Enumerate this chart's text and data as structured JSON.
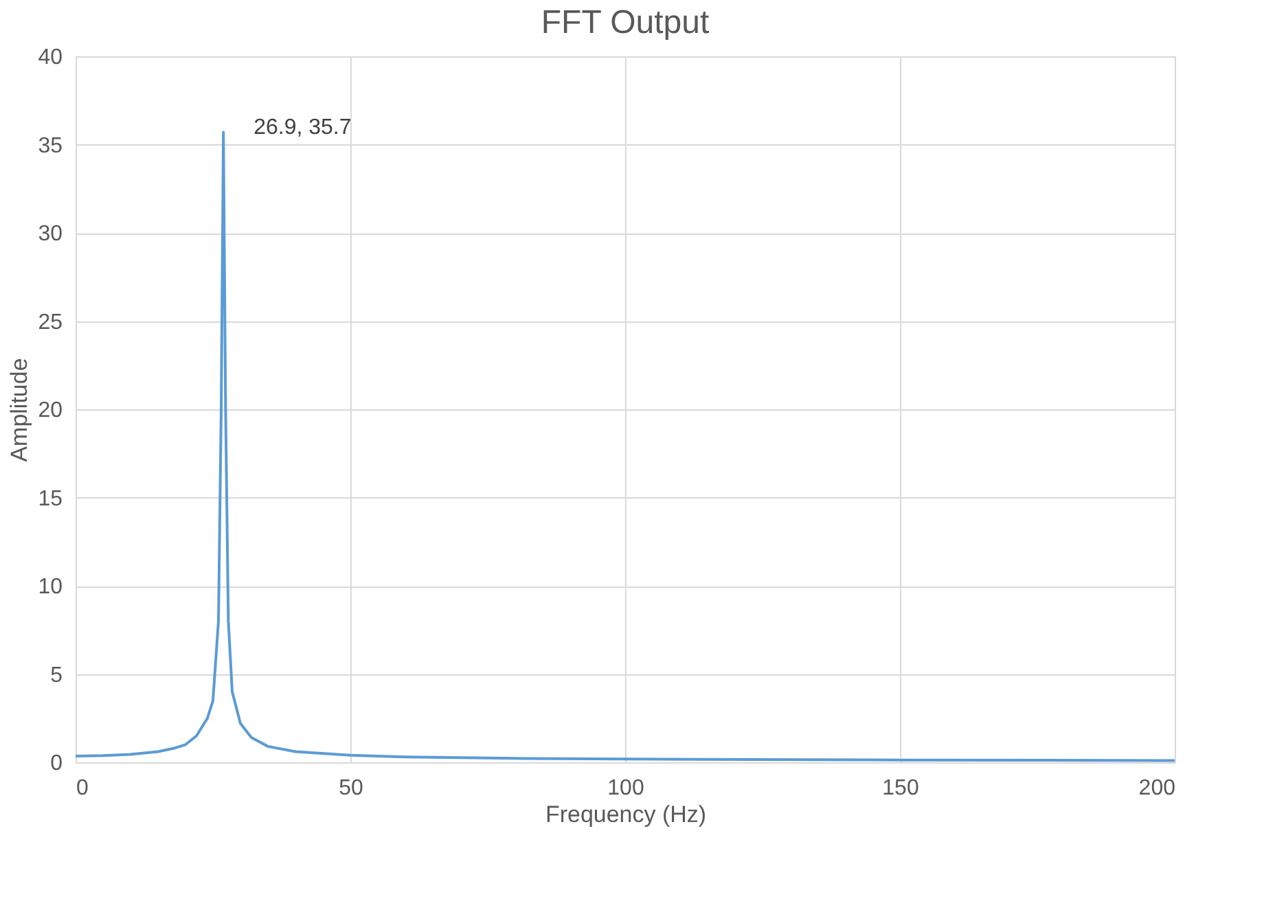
{
  "chart_data": {
    "type": "line",
    "title": "FFT Output",
    "xlabel": "Frequency (Hz)",
    "ylabel": "Amplitude",
    "xlim": [
      0,
      200
    ],
    "xticks": [
      0,
      50,
      100,
      150,
      200
    ],
    "ylim": [
      0,
      40
    ],
    "yticks": [
      0,
      5,
      10,
      15,
      20,
      25,
      30,
      35,
      40
    ],
    "grid": true,
    "marker": "none",
    "line_style": "solid",
    "series": [
      {
        "color": "#5b9bd5",
        "x": [
          0,
          5,
          10,
          15,
          18,
          20,
          22,
          24,
          25,
          26,
          26.5,
          26.9,
          27.3,
          27.8,
          28.5,
          30,
          32,
          35,
          40,
          50,
          60,
          80,
          100,
          150,
          200
        ],
        "values": [
          0.35,
          0.38,
          0.45,
          0.6,
          0.8,
          1.0,
          1.5,
          2.5,
          3.5,
          8,
          20,
          35.7,
          20,
          8,
          4,
          2.2,
          1.4,
          0.9,
          0.6,
          0.4,
          0.3,
          0.22,
          0.18,
          0.13,
          0.1
        ]
      }
    ],
    "annotations": [
      {
        "text": "26.9, 35.7",
        "x": 26.9,
        "y": 35.7
      }
    ]
  }
}
